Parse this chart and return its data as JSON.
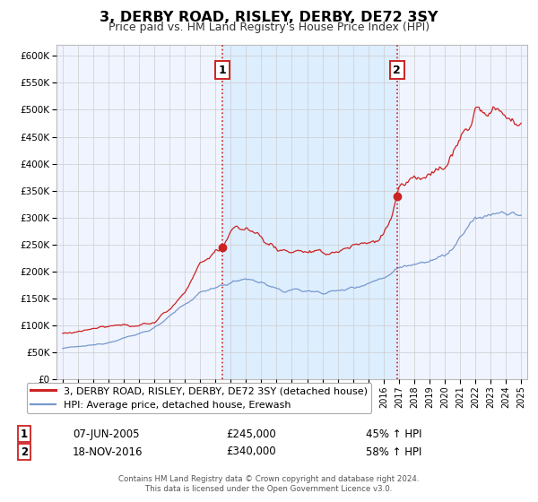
{
  "title": "3, DERBY ROAD, RISLEY, DERBY, DE72 3SY",
  "subtitle": "Price paid vs. HM Land Registry's House Price Index (HPI)",
  "background_color": "#f0f4ff",
  "ylim": [
    0,
    620000
  ],
  "ytick_labels": [
    "£0",
    "£50K",
    "£100K",
    "£150K",
    "£200K",
    "£250K",
    "£300K",
    "£350K",
    "£400K",
    "£450K",
    "£500K",
    "£550K",
    "£600K"
  ],
  "ytick_vals": [
    0,
    50000,
    100000,
    150000,
    200000,
    250000,
    300000,
    350000,
    400000,
    450000,
    500000,
    550000,
    600000
  ],
  "xlim_start": 1994.6,
  "xlim_end": 2025.4,
  "marker1_x": 2005.44,
  "marker1_y": 245000,
  "marker2_x": 2016.88,
  "marker2_y": 340000,
  "legend1_label": "3, DERBY ROAD, RISLEY, DERBY, DE72 3SY (detached house)",
  "legend2_label": "HPI: Average price, detached house, Erewash",
  "marker1_date": "07-JUN-2005",
  "marker1_price": "£245,000",
  "marker1_hpi": "45% ↑ HPI",
  "marker2_date": "18-NOV-2016",
  "marker2_price": "£340,000",
  "marker2_hpi": "58% ↑ HPI",
  "footer_line1": "Contains HM Land Registry data © Crown copyright and database right 2024.",
  "footer_line2": "This data is licensed under the Open Government Licence v3.0.",
  "line1_color": "#cc2222",
  "line2_color": "#7799cc",
  "shade_color": "#ddeeff",
  "grid_color": "#cccccc",
  "vline_color": "#cc2222"
}
